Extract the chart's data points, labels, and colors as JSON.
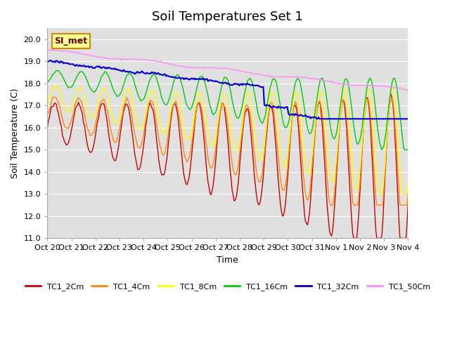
{
  "title": "Soil Temperatures Set 1",
  "xlabel": "Time",
  "ylabel": "Soil Temperature (C)",
  "ylim": [
    11.0,
    20.5
  ],
  "yticks": [
    11.0,
    12.0,
    13.0,
    14.0,
    15.0,
    16.0,
    17.0,
    18.0,
    19.0,
    20.0
  ],
  "xtick_positions": [
    0,
    1,
    2,
    3,
    4,
    5,
    6,
    7,
    8,
    9,
    10,
    11,
    12,
    13,
    14,
    15
  ],
  "xtick_labels": [
    "Oct 20",
    "Oct 21",
    "Oct 22",
    "Oct 23",
    "Oct 24",
    "Oct 25",
    "Oct 26",
    "Oct 27",
    "Oct 28",
    "Oct 29",
    "Oct 30",
    "Oct 31",
    "Nov 1",
    "Nov 2",
    "Nov 3",
    "Nov 4"
  ],
  "colors": {
    "TC1_2Cm": "#cc0000",
    "TC1_4Cm": "#ff8800",
    "TC1_8Cm": "#ffff00",
    "TC1_16Cm": "#00cc00",
    "TC1_32Cm": "#0000cc",
    "TC1_50Cm": "#ff88ff"
  },
  "bg_color": "#e0e0e0",
  "annotation_text": "SI_met",
  "annotation_bg": "#ffff99",
  "annotation_border": "#cc8800"
}
